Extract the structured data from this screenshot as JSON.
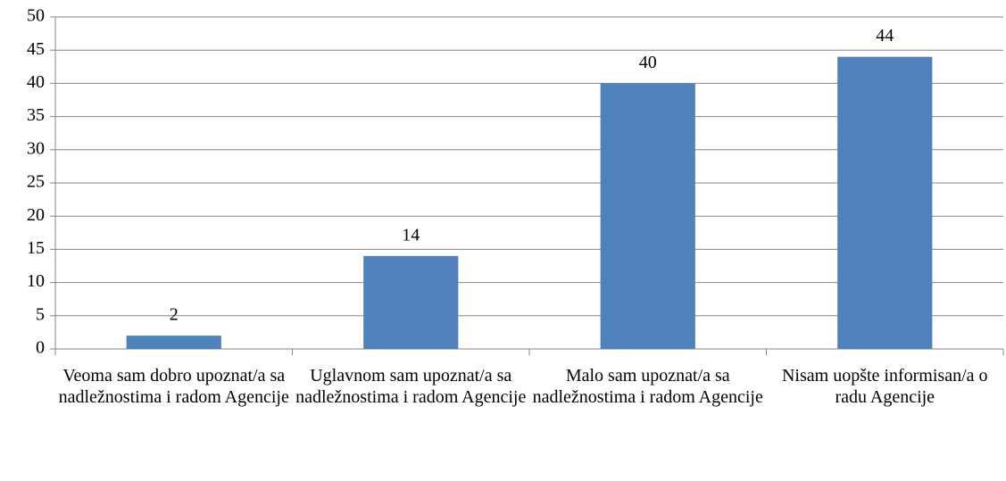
{
  "chart_data": {
    "type": "bar",
    "categories": [
      "Veoma sam dobro upoznat/a sa nadležnostima i radom Agencije",
      "Uglavnom sam upoznat/a sa nadležnostima i radom Agencije",
      "Malo sam upoznat/a sa nadležnostima i radom Agencije",
      "Nisam uopšte informisan/a o radu Agencije"
    ],
    "values": [
      2,
      14,
      40,
      44
    ],
    "color": "#4f81bd",
    "ylim": [
      0,
      50
    ],
    "yticks": [
      0,
      5,
      10,
      15,
      20,
      25,
      30,
      35,
      40,
      45,
      50
    ],
    "grid": true
  }
}
